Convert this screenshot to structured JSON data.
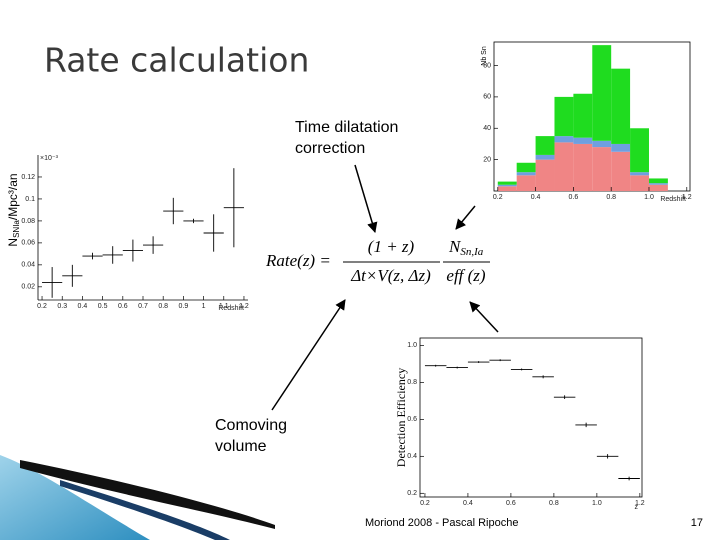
{
  "title": "Rate calculation",
  "annotations": {
    "time_dilatation": [
      "Time dilatation",
      "correction"
    ],
    "comoving": [
      "Comoving",
      "volume"
    ]
  },
  "formula": {
    "lhs": "Rate(z) =",
    "numerator": "(1 + z)",
    "denominator": "Δt×V(z, Δz)",
    "count": "N",
    "count_sub": "Sn,Ia",
    "efficiency": "eff (z)"
  },
  "footer": "Moriond 2008 - Pascal Ripoche",
  "page_number": "17",
  "chart_data": [
    {
      "type": "scatter",
      "ylabel": "N",
      "ylabel_sub": "SNIa",
      "ylabel_rest": "/Mpc³/an",
      "xlabel": "Redshift",
      "y_multiplier": "×10⁻³",
      "x": [
        0.25,
        0.35,
        0.45,
        0.55,
        0.65,
        0.75,
        0.85,
        0.95,
        1.05,
        1.15
      ],
      "values": [
        0.024,
        0.03,
        0.048,
        0.049,
        0.053,
        0.058,
        0.089,
        0.08,
        0.069,
        0.092
      ],
      "yerr": [
        0.014,
        0.01,
        0.003,
        0.008,
        0.01,
        0.008,
        0.012,
        0.002,
        0.017,
        0.036
      ],
      "xerr": 0.05,
      "color": "#000000",
      "xlim": [
        0.18,
        1.22
      ],
      "ylim": [
        0.008,
        0.14
      ],
      "xticks": [
        0.2,
        0.3,
        0.4,
        0.5,
        0.6,
        0.7,
        0.8,
        0.9,
        1,
        1.1,
        1.2
      ],
      "yticks": [
        0.02,
        0.04,
        0.06,
        0.08,
        0.1,
        0.12
      ]
    },
    {
      "type": "histogram",
      "ylabel": "Nb Sn",
      "xlabel": "Redshift",
      "bins": [
        0.2,
        0.3,
        0.4,
        0.5,
        0.6,
        0.7,
        0.8,
        0.9,
        1.0,
        1.1,
        1.2
      ],
      "series": [
        {
          "color": "#f08585",
          "values": [
            3,
            10,
            20,
            31,
            30,
            28,
            25,
            10,
            4,
            0
          ]
        },
        {
          "color": "#6f9fe0",
          "values": [
            1,
            2,
            3,
            4,
            4,
            4,
            5,
            2,
            1,
            0
          ]
        },
        {
          "color": "#1fdc1f",
          "values": [
            2,
            6,
            12,
            25,
            28,
            61,
            48,
            28,
            3,
            0
          ]
        }
      ],
      "xlim": [
        0.18,
        1.217
      ],
      "ylim": [
        0,
        95
      ],
      "xticks": [
        0.2,
        0.4,
        0.6,
        0.8,
        {
          "value": 1,
          "label": "1.0"
        },
        1.2
      ],
      "yticks": [
        20,
        40,
        60,
        80
      ]
    },
    {
      "type": "scatter",
      "ylabel": "Detection Efficiency",
      "xlabel": "z",
      "x": [
        0.25,
        0.35,
        0.45,
        0.55,
        0.65,
        0.75,
        0.85,
        0.95,
        1.05,
        1.15
      ],
      "values": [
        0.89,
        0.88,
        0.91,
        0.92,
        0.87,
        0.83,
        0.72,
        0.57,
        0.4,
        0.28
      ],
      "yerr": [
        0.005,
        0.005,
        0.005,
        0.005,
        0.005,
        0.008,
        0.01,
        0.012,
        0.012,
        0.01
      ],
      "xerr": 0.05,
      "color": "#000000",
      "xlim": [
        0.177,
        1.21
      ],
      "ylim": [
        0.18,
        1.04
      ],
      "xticks": [
        0.2,
        0.4,
        0.6,
        0.8,
        {
          "value": 1,
          "label": "1.0"
        },
        1.2
      ],
      "yticks": [
        0.2,
        0.4,
        0.6,
        0.8,
        {
          "value": 1,
          "label": "1.0"
        }
      ]
    }
  ]
}
